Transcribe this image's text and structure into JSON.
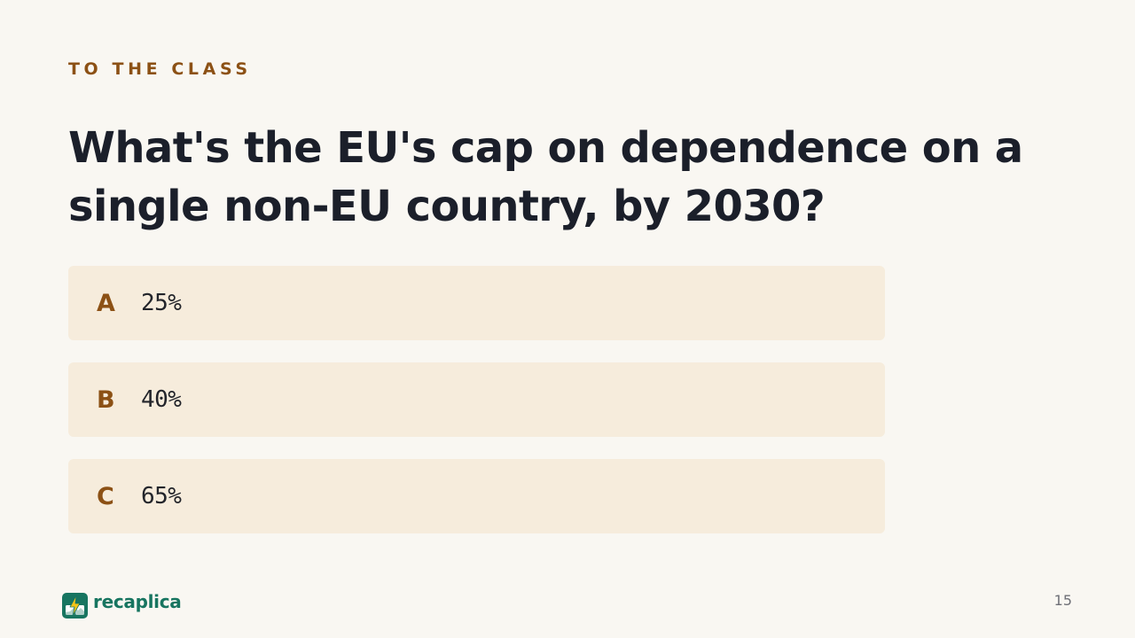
{
  "slide": {
    "eyebrow": "TO THE CLASS",
    "question": "What's the EU's cap on dependence on a single non-EU country, by 2030?",
    "options": [
      {
        "letter": "A",
        "text": "25%"
      },
      {
        "letter": "B",
        "text": "40%"
      },
      {
        "letter": "C",
        "text": "65%"
      }
    ],
    "page_number": "15"
  },
  "brand": {
    "name": "recaplica",
    "icon": "recaplica-logo-icon"
  },
  "colors": {
    "background": "#f9f7f2",
    "accent": "#8c5115",
    "option_background": "#f6ecdc",
    "heading": "#1b1f2a",
    "brand": "#177560"
  }
}
